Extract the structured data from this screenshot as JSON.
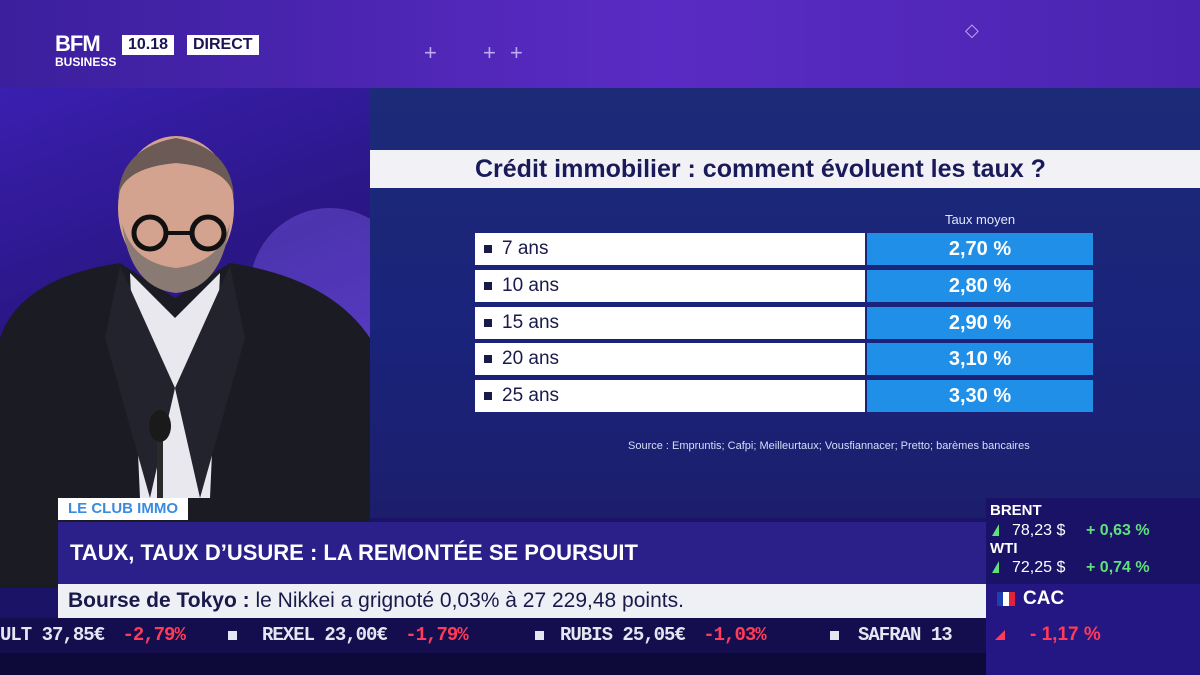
{
  "header": {
    "logo_line1": "BFM",
    "logo_line2": "BUSINESS",
    "time": "10.18",
    "live_label": "DIRECT"
  },
  "chart_data": {
    "type": "table",
    "title": "Crédit immobilier : comment évoluent les taux ?",
    "column_header": "Taux moyen",
    "rows": [
      {
        "label": "7 ans",
        "value": "2,70 %"
      },
      {
        "label": "10 ans",
        "value": "2,80 %"
      },
      {
        "label": "15 ans",
        "value": "2,90 %"
      },
      {
        "label": "20 ans",
        "value": "3,10 %"
      },
      {
        "label": "25 ans",
        "value": "3,30 %"
      }
    ],
    "source": "Source : Empruntis; Cafpi; Meilleurtaux; Vousfiannacer; Pretto; barèmes bancaires"
  },
  "lower_third": {
    "tag": "LE CLUB IMMO",
    "headline": "TAUX, TAUX D’USURE : LA REMONTÉE SE POURSUIT",
    "sub_bold": "Bourse de Tokyo :",
    "sub_text": " le Nikkei a grignoté 0,03% à 27 229,48 points."
  },
  "ticker": [
    {
      "name": "ULT",
      "price": "37,85€",
      "change": "-2,79%"
    },
    {
      "name": "REXEL",
      "price": "23,00€",
      "change": "-1,79%"
    },
    {
      "name": "RUBIS",
      "price": "25,05€",
      "change": "-1,03%"
    },
    {
      "name": "SAFRAN",
      "price": "13",
      "change": ""
    }
  ],
  "markets": {
    "brent": {
      "name": "BRENT",
      "price": "78,23 $",
      "change": "+ 0,63 %"
    },
    "wti": {
      "name": "WTI",
      "price": "72,25 $",
      "change": "+ 0,74 %"
    },
    "cac": {
      "name": "CAC",
      "change": "- 1,17 %"
    }
  },
  "colors": {
    "header": "#4a24b0",
    "value_cell": "#1f8fe8",
    "positive": "#5fe07a",
    "negative": "#ff3b57"
  }
}
